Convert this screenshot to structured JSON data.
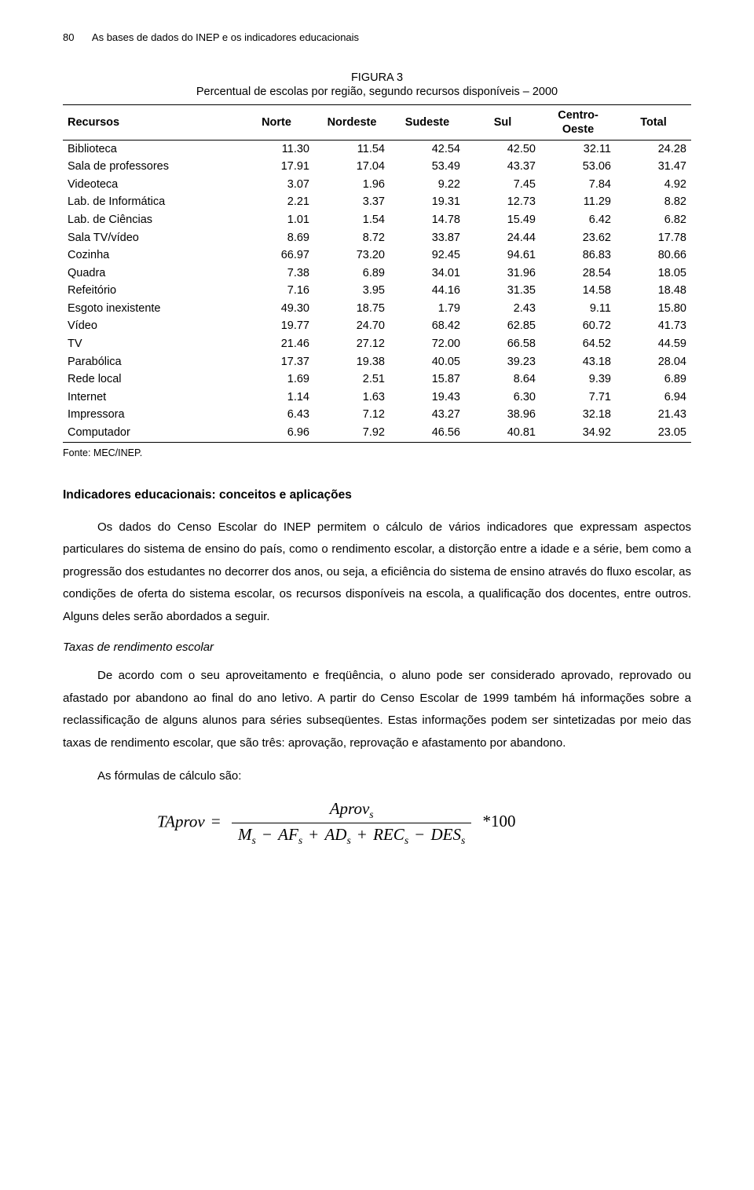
{
  "page_number": "80",
  "running_title": "As bases de dados do INEP e os indicadores educacionais",
  "figure": {
    "label": "FIGURA 3",
    "subtitle": "Percentual de escolas por região, segundo recursos disponíveis – 2000",
    "columns": [
      "Recursos",
      "Norte",
      "Nordeste",
      "Sudeste",
      "Sul",
      "Centro-\nOeste",
      "Total"
    ],
    "rows": [
      [
        "Biblioteca",
        "11.30",
        "11.54",
        "42.54",
        "42.50",
        "32.11",
        "24.28"
      ],
      [
        "Sala de professores",
        "17.91",
        "17.04",
        "53.49",
        "43.37",
        "53.06",
        "31.47"
      ],
      [
        "Videoteca",
        "3.07",
        "1.96",
        "9.22",
        "7.45",
        "7.84",
        "4.92"
      ],
      [
        "Lab. de Informática",
        "2.21",
        "3.37",
        "19.31",
        "12.73",
        "11.29",
        "8.82"
      ],
      [
        "Lab. de Ciências",
        "1.01",
        "1.54",
        "14.78",
        "15.49",
        "6.42",
        "6.82"
      ],
      [
        "Sala TV/vídeo",
        "8.69",
        "8.72",
        "33.87",
        "24.44",
        "23.62",
        "17.78"
      ],
      [
        "Cozinha",
        "66.97",
        "73.20",
        "92.45",
        "94.61",
        "86.83",
        "80.66"
      ],
      [
        "Quadra",
        "7.38",
        "6.89",
        "34.01",
        "31.96",
        "28.54",
        "18.05"
      ],
      [
        "Refeitório",
        "7.16",
        "3.95",
        "44.16",
        "31.35",
        "14.58",
        "18.48"
      ],
      [
        "Esgoto inexistente",
        "49.30",
        "18.75",
        "1.79",
        "2.43",
        "9.11",
        "15.80"
      ],
      [
        "Vídeo",
        "19.77",
        "24.70",
        "68.42",
        "62.85",
        "60.72",
        "41.73"
      ],
      [
        "TV",
        "21.46",
        "27.12",
        "72.00",
        "66.58",
        "64.52",
        "44.59"
      ],
      [
        "Parabólica",
        "17.37",
        "19.38",
        "40.05",
        "39.23",
        "43.18",
        "28.04"
      ],
      [
        "Rede local",
        "1.69",
        "2.51",
        "15.87",
        "8.64",
        "9.39",
        "6.89"
      ],
      [
        "Internet",
        "1.14",
        "1.63",
        "19.43",
        "6.30",
        "7.71",
        "6.94"
      ],
      [
        "Impressora",
        "6.43",
        "7.12",
        "43.27",
        "38.96",
        "32.18",
        "21.43"
      ],
      [
        "Computador",
        "6.96",
        "7.92",
        "46.56",
        "40.81",
        "34.92",
        "23.05"
      ]
    ],
    "source": "Fonte: MEC/INEP.",
    "col_widths_pct": [
      28,
      12,
      12,
      12,
      12,
      12,
      12
    ],
    "border_color": "#000000",
    "font_size_pt": 14.5
  },
  "section_heading": "Indicadores educacionais: conceitos e aplicações",
  "paragraphs": {
    "p1": "Os dados do Censo Escolar do INEP permitem o cálculo de vários indicadores que expressam aspectos particulares do sistema de ensino do país, como o rendimento escolar, a distorção entre a idade e a série, bem como a progressão dos estudantes no decorrer dos anos, ou seja, a eficiência do sistema de ensino através do fluxo escolar, as condições de oferta do sistema escolar, os recursos disponíveis na escola, a qualificação dos docentes, entre outros. Alguns deles serão abordados a seguir.",
    "subhead": "Taxas de rendimento escolar",
    "p2": "De acordo com o seu aproveitamento e freqüência, o aluno pode ser considerado aprovado, reprovado ou afastado por abandono ao final do ano letivo. A partir do Censo Escolar de 1999 também há informações sobre a reclassificação de alguns alunos para séries subseqüentes. Estas informações podem ser sintetizadas por  meio das taxas de rendimento escolar, que são três: aprovação, reprovação e afastamento por abandono.",
    "p3": "As fórmulas de cálculo são:"
  },
  "formula": {
    "lhs": "TAprov",
    "numer": "Aprov",
    "sub": "s",
    "den_terms": [
      "M",
      "AF",
      "AD",
      "REC",
      "DES"
    ],
    "den_ops": [
      "−",
      "+",
      "+",
      "−"
    ],
    "tail": "*100"
  }
}
